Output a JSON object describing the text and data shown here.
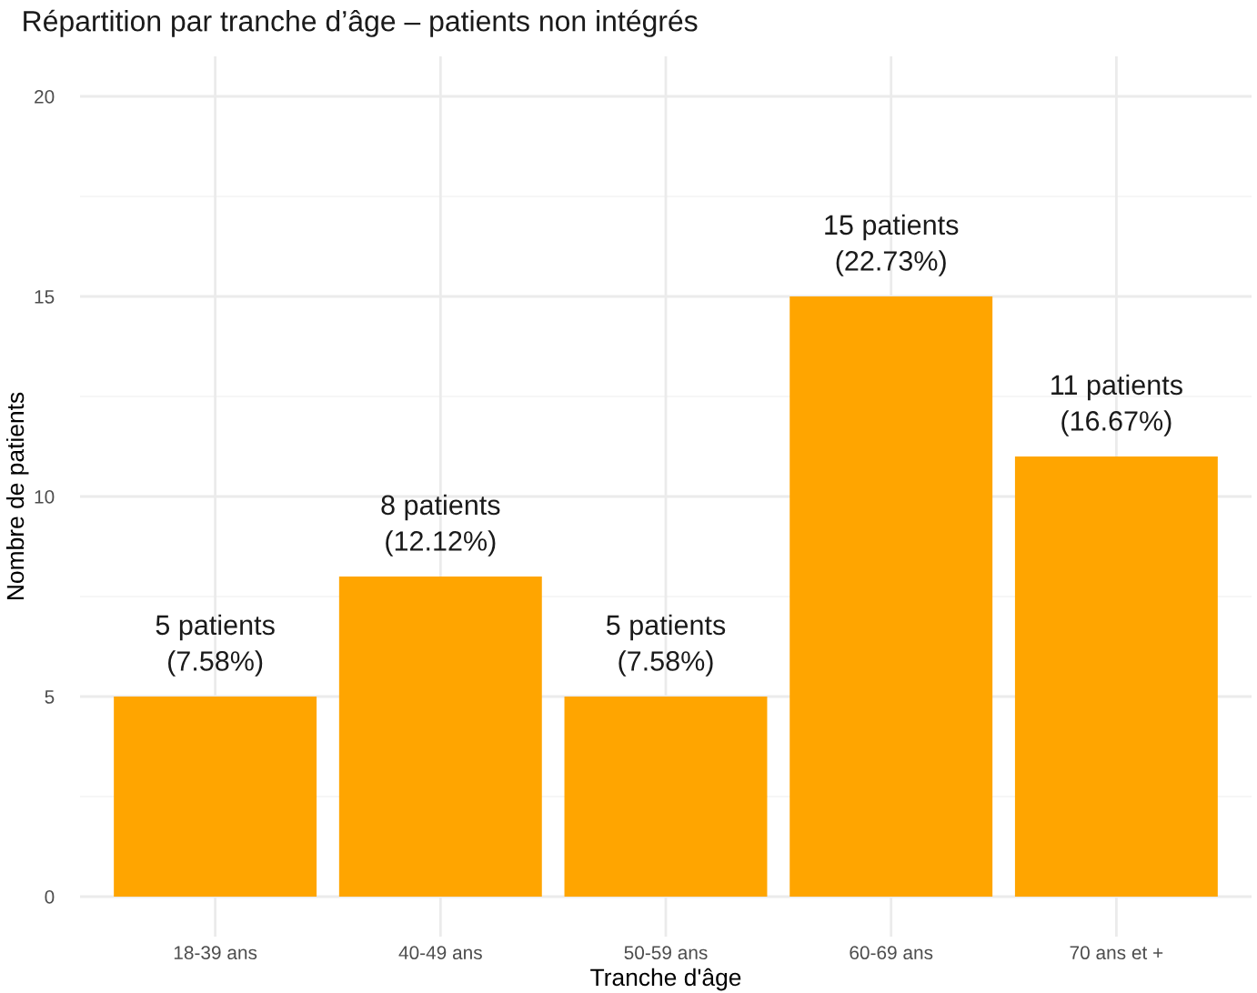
{
  "chart_data": {
    "type": "bar",
    "title": "Répartition par tranche d’âge – patients non intégrés",
    "xlabel": "Tranche d'âge",
    "ylabel": "Nombre de patients",
    "categories": [
      "18-39 ans",
      "40-49 ans",
      "50-59 ans",
      "60-69 ans",
      "70 ans et +"
    ],
    "values": [
      5,
      8,
      5,
      15,
      11
    ],
    "color": "#ffa500",
    "value_labels": [
      "5 patients\n(7.58%)",
      "8 patients\n(12.12%)",
      "5 patients\n(7.58%)",
      "15 patients\n(22.73%)",
      "11 patients\n(16.67%)"
    ],
    "ylim": [
      -1,
      21
    ],
    "yticks": [
      0,
      {
        "value": 2.5,
        "label": null
      },
      5,
      {
        "value": 7.5,
        "label": null
      },
      10,
      {
        "value": 12.5,
        "label": null
      },
      15,
      {
        "value": 17.5,
        "label": null
      },
      20
    ],
    "grid": true,
    "legend": false
  }
}
